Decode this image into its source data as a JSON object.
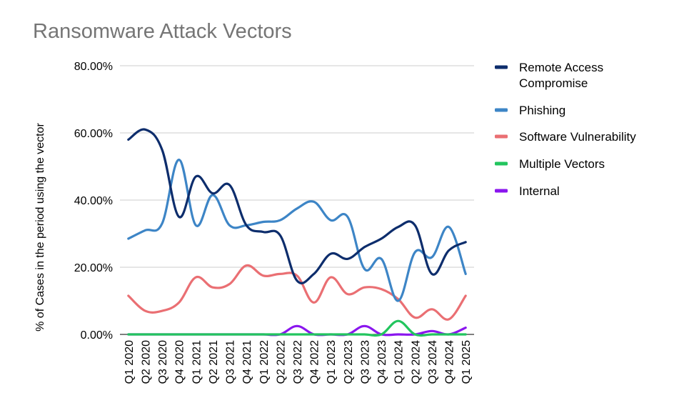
{
  "chart_data": {
    "type": "line",
    "title": "Ransomware Attack Vectors",
    "xlabel": "",
    "ylabel": "% of Cases in the period using the vector",
    "ylim": [
      0,
      80
    ],
    "y_ticks": [
      "0.00%",
      "20.00%",
      "40.00%",
      "60.00%",
      "80.00%"
    ],
    "y_tick_values": [
      0,
      20,
      40,
      60,
      80
    ],
    "grid": true,
    "legend_position": "right",
    "categories": [
      "Q1 2020",
      "Q2 2020",
      "Q3 2020",
      "Q4 2020",
      "Q1 2021",
      "Q2 2021",
      "Q3 2021",
      "Q4 2021",
      "Q1 2022",
      "Q2 2022",
      "Q3 2022",
      "Q4 2022",
      "Q1 2023",
      "Q2 2023",
      "Q3 2023",
      "Q4 2023",
      "Q1 2024",
      "Q2 2024",
      "Q3 2024",
      "Q4 2024",
      "Q1 2025"
    ],
    "series": [
      {
        "name": "Remote Access Compromise",
        "color": "#0d2d6c",
        "legend_lines": [
          "Remote Access",
          "Compromise"
        ],
        "values": [
          58,
          61,
          55,
          35,
          47,
          42,
          44.5,
          32.5,
          30.5,
          29.5,
          16,
          18,
          24,
          22.5,
          26,
          28.5,
          32,
          32.5,
          18,
          25,
          27.5
        ]
      },
      {
        "name": "Phishing",
        "color": "#3d85c6",
        "legend_lines": [
          "Phishing"
        ],
        "values": [
          28.5,
          31,
          33,
          52,
          32.5,
          41.5,
          32.5,
          32.5,
          33.5,
          34,
          37.5,
          39.5,
          34,
          35,
          19.5,
          22.5,
          10,
          24.5,
          23,
          32,
          18
        ]
      },
      {
        "name": "Software Vulnerability",
        "color": "#ea6f73",
        "legend_lines": [
          "Software Vulnerability"
        ],
        "values": [
          11.5,
          7,
          7,
          9.5,
          17,
          14,
          15,
          20.5,
          17.5,
          18,
          17.5,
          9.5,
          17,
          12,
          14,
          13.5,
          10.5,
          5,
          7.5,
          4.5,
          11.5
        ]
      },
      {
        "name": "Multiple Vectors",
        "color": "#22c55e",
        "legend_lines": [
          "Multiple Vectors"
        ],
        "values": [
          0,
          0,
          0,
          0,
          0,
          0,
          0,
          0,
          0,
          0,
          0,
          0,
          0,
          0,
          0,
          0,
          4,
          0,
          0,
          0,
          0
        ]
      },
      {
        "name": "Internal",
        "color": "#8a16ee",
        "legend_lines": [
          "Internal"
        ],
        "values": [
          0,
          0,
          0,
          0,
          0,
          0,
          0,
          0,
          0,
          0,
          2.5,
          0,
          0,
          0,
          2.5,
          0,
          0,
          0,
          1,
          0,
          2
        ]
      }
    ]
  }
}
